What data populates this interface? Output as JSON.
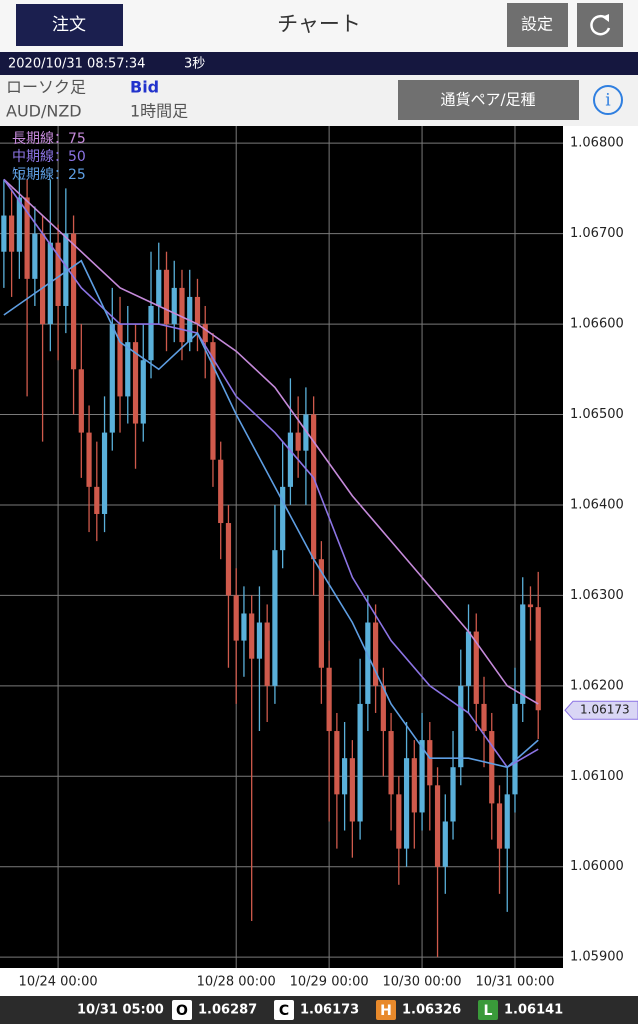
{
  "header": {
    "order_button": "注文",
    "title": "チャート",
    "settings_button": "設定"
  },
  "info_bar": {
    "timestamp": "2020/10/31 08:57:34",
    "interval": "3秒"
  },
  "chart_settings": {
    "chart_type": "ローソク足",
    "price_type": "Bid",
    "pair": "AUD/NZD",
    "timeframe": "1時間足",
    "pair_button": "通貨ペア/足種"
  },
  "ohlc_bar": {
    "time": "10/31 05:00",
    "labels": [
      "O",
      "C",
      "H",
      "L"
    ]
  },
  "chart_data": {
    "type": "candlestick",
    "up_color": "#5ab0da",
    "down_color": "#cf5a4c",
    "ylim": [
      1.05888,
      1.06819
    ],
    "yticks": [
      {
        "value": 1.068,
        "label": "1.06800"
      },
      {
        "value": 1.067,
        "label": "1.06700"
      },
      {
        "value": 1.066,
        "label": "1.06600"
      },
      {
        "value": 1.065,
        "label": "1.06500"
      },
      {
        "value": 1.064,
        "label": "1.06400"
      },
      {
        "value": 1.063,
        "label": "1.06300"
      },
      {
        "value": 1.062,
        "label": "1.06200"
      },
      {
        "value": 1.061,
        "label": "1.06100"
      },
      {
        "value": 1.06,
        "label": "1.06000"
      },
      {
        "value": 1.059,
        "label": "1.05900"
      }
    ],
    "xlim": [
      -0.5,
      72.2
    ],
    "xticks": [
      {
        "value": 7,
        "label": "10/24 00:00"
      },
      {
        "value": 30,
        "label": "10/28 00:00"
      },
      {
        "value": 42,
        "label": "10/29 00:00"
      },
      {
        "value": 54,
        "label": "10/30 00:00"
      },
      {
        "value": 66,
        "label": "10/31 00:00"
      }
    ],
    "grid": true,
    "open": [
      1.0668,
      1.0672,
      1.0668,
      1.0674,
      1.0665,
      1.067,
      1.066,
      1.0669,
      1.0662,
      1.067,
      1.0655,
      1.0648,
      1.0642,
      1.0639,
      1.0648,
      1.066,
      1.0652,
      1.0658,
      1.0649,
      1.0656,
      1.0662,
      1.0666,
      1.066,
      1.0664,
      1.0658,
      1.0663,
      1.066,
      1.0658,
      1.0645,
      1.0638,
      1.063,
      1.0625,
      1.0628,
      1.0623,
      1.0627,
      1.062,
      1.0635,
      1.0642,
      1.0648,
      1.0646,
      1.065,
      1.0634,
      1.0622,
      1.0615,
      1.0608,
      1.0612,
      1.0605,
      1.0618,
      1.0627,
      1.062,
      1.0615,
      1.0608,
      1.0602,
      1.0612,
      1.0606,
      1.0614,
      1.0609,
      1.06,
      1.0605,
      1.0611,
      1.062,
      1.0626,
      1.0618,
      1.0615,
      1.0607,
      1.0602,
      1.0608,
      1.0618,
      1.0629,
      1.06287
    ],
    "high": [
      1.0676,
      1.0675,
      1.0677,
      1.0676,
      1.0673,
      1.0672,
      1.0676,
      1.0671,
      1.0675,
      1.0672,
      1.066,
      1.0651,
      1.0647,
      1.0652,
      1.0664,
      1.0663,
      1.0662,
      1.066,
      1.066,
      1.0668,
      1.0669,
      1.0668,
      1.0667,
      1.0666,
      1.0666,
      1.0665,
      1.0662,
      1.0659,
      1.0647,
      1.064,
      1.0633,
      1.0631,
      1.063,
      1.0631,
      1.0629,
      1.064,
      1.0647,
      1.0654,
      1.0652,
      1.0653,
      1.0652,
      1.0636,
      1.0625,
      1.0617,
      1.0616,
      1.0614,
      1.0623,
      1.063,
      1.0629,
      1.0622,
      1.0617,
      1.061,
      1.0616,
      1.0614,
      1.0617,
      1.0616,
      1.0611,
      1.0608,
      1.0615,
      1.0624,
      1.0629,
      1.0628,
      1.0621,
      1.0617,
      1.0609,
      1.0611,
      1.0622,
      1.0632,
      1.0631,
      1.06326
    ],
    "low": [
      1.0664,
      1.0663,
      1.0665,
      1.0652,
      1.0662,
      1.0647,
      1.0657,
      1.0656,
      1.0659,
      1.065,
      1.0643,
      1.0637,
      1.0636,
      1.0637,
      1.0646,
      1.0648,
      1.0649,
      1.0644,
      1.0647,
      1.0654,
      1.066,
      1.0657,
      1.0658,
      1.0656,
      1.0657,
      1.0657,
      1.0654,
      1.0642,
      1.0634,
      1.0622,
      1.0618,
      1.0621,
      1.0594,
      1.0615,
      1.0616,
      1.0618,
      1.0633,
      1.064,
      1.0643,
      1.064,
      1.063,
      1.0618,
      1.0605,
      1.0602,
      1.0604,
      1.0601,
      1.0603,
      1.0615,
      1.0617,
      1.061,
      1.0604,
      1.0598,
      1.06,
      1.0602,
      1.0604,
      1.0604,
      1.059,
      1.0597,
      1.0603,
      1.0609,
      1.0617,
      1.0615,
      1.0611,
      1.0603,
      1.0597,
      1.0595,
      1.0606,
      1.0616,
      1.0625,
      1.06141
    ],
    "close": [
      1.0672,
      1.0668,
      1.0674,
      1.0665,
      1.067,
      1.066,
      1.0669,
      1.0662,
      1.067,
      1.0655,
      1.0648,
      1.0642,
      1.0639,
      1.0648,
      1.066,
      1.0652,
      1.0658,
      1.0649,
      1.0656,
      1.0662,
      1.0666,
      1.066,
      1.0664,
      1.0658,
      1.0663,
      1.066,
      1.0658,
      1.0645,
      1.0638,
      1.063,
      1.0625,
      1.0628,
      1.0623,
      1.0627,
      1.062,
      1.0635,
      1.0642,
      1.0648,
      1.0646,
      1.065,
      1.0634,
      1.0622,
      1.0615,
      1.0608,
      1.0612,
      1.0605,
      1.0618,
      1.0627,
      1.062,
      1.0615,
      1.0608,
      1.0602,
      1.0612,
      1.0606,
      1.0614,
      1.0609,
      1.06,
      1.0605,
      1.0611,
      1.062,
      1.0626,
      1.0618,
      1.0615,
      1.0607,
      1.0602,
      1.0608,
      1.0618,
      1.0629,
      1.06287,
      1.06173
    ],
    "lines": [
      {
        "name": "長期線：75",
        "color": "#c58ada",
        "x": [
          0,
          5,
          10,
          15,
          20,
          25,
          30,
          35,
          40,
          45,
          50,
          55,
          60,
          65,
          69
        ],
        "values": [
          1.0676,
          1.0672,
          1.0668,
          1.0664,
          1.0662,
          1.066,
          1.0657,
          1.0653,
          1.0647,
          1.0641,
          1.0636,
          1.0631,
          1.0626,
          1.062,
          1.0618
        ]
      },
      {
        "name": "中期線：50",
        "color": "#8c74e4",
        "x": [
          0,
          5,
          10,
          15,
          20,
          25,
          30,
          35,
          40,
          45,
          50,
          55,
          60,
          65,
          69
        ],
        "values": [
          1.0676,
          1.067,
          1.0664,
          1.066,
          1.066,
          1.0659,
          1.0652,
          1.0648,
          1.0643,
          1.0632,
          1.0625,
          1.062,
          1.0617,
          1.0611,
          1.0613
        ]
      },
      {
        "name": "短期線：25",
        "color": "#5e9ee2",
        "x": [
          0,
          5,
          10,
          15,
          20,
          25,
          30,
          35,
          40,
          45,
          50,
          55,
          60,
          65,
          69
        ],
        "values": [
          1.0661,
          1.0664,
          1.0667,
          1.0658,
          1.0655,
          1.0659,
          1.065,
          1.0642,
          1.0634,
          1.0627,
          1.0618,
          1.0612,
          1.0612,
          1.0611,
          1.0614
        ]
      }
    ]
  }
}
